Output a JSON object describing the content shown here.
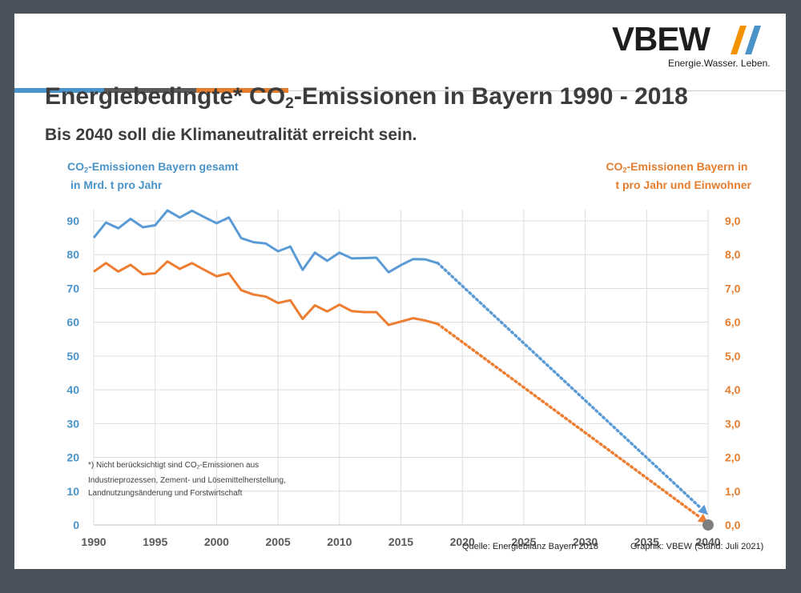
{
  "header": {
    "logo_text": "VBEW",
    "tagline": "Energie.Wasser. Leben.",
    "bar_colors": [
      "#4a93c8",
      "#595959",
      "#e47d2e"
    ]
  },
  "title": {
    "pre": "Energiebedingte* CO",
    "sub": "2",
    "post": "-Emissionen in Bayern 1990 - 2018"
  },
  "subtitle": "Bis 2040 soll die Klimaneutralität erreicht sein.",
  "left_axis_title": {
    "pre": "CO",
    "sub": "2",
    "post": "-Emissionen Bayern gesamt",
    "line2": "in Mrd. t pro Jahr"
  },
  "right_axis_title": {
    "pre": "CO",
    "sub": "2",
    "post": "-Emissionen Bayern in",
    "line2": "t pro Jahr und Einwohner"
  },
  "footnote": {
    "pre": "*) Nicht berücksichtigt sind CO",
    "sub": "2",
    "post": "-Emissionen aus",
    "line2": "Industrieprozessen, Zement- und Lösemittelherstellung,",
    "line3": "Landnutzungsänderung und Forstwirtschaft"
  },
  "source": "Quelle: Energiebilanz Bayern 2018",
  "credit": "Graphik: VBEW (Stand: Juli 2021)",
  "chart_data": {
    "type": "line",
    "x_ticks": [
      1990,
      1995,
      2000,
      2005,
      2010,
      2015,
      2020,
      2025,
      2030,
      2035,
      2040
    ],
    "y_left_ticks": [
      "0",
      "10",
      "20",
      "30",
      "40",
      "50",
      "60",
      "70",
      "80",
      "90"
    ],
    "y_right_ticks": [
      "0,0",
      "1,0",
      "2,0",
      "3,0",
      "4,0",
      "5,0",
      "6,0",
      "7,0",
      "8,0",
      "9,0"
    ],
    "xlim": [
      1990,
      2040
    ],
    "ylim_left": [
      0,
      90
    ],
    "ylim_right": [
      0,
      9
    ],
    "grid": true,
    "series": [
      {
        "axis": "left",
        "color": "#5b9bd5",
        "x": [
          1990,
          1991,
          1992,
          1993,
          1994,
          1995,
          1996,
          1997,
          1998,
          1999,
          2000,
          2001,
          2002,
          2003,
          2004,
          2005,
          2006,
          2007,
          2008,
          2009,
          2010,
          2011,
          2012,
          2013,
          2014,
          2015,
          2016,
          2017,
          2018
        ],
        "values": [
          85,
          89.5,
          87.8,
          90.6,
          88.1,
          88.7,
          93.1,
          91,
          93,
          91.1,
          89.3,
          91,
          84.9,
          83.7,
          83.3,
          81,
          82.4,
          75.5,
          80.6,
          78.2,
          80.6,
          78.9,
          79,
          79.1,
          74.8,
          76.9,
          78.7,
          78.6,
          77.5
        ],
        "projection": {
          "x": [
            2018,
            2040
          ],
          "values": [
            77.5,
            3
          ]
        }
      },
      {
        "axis": "right",
        "color": "#ed7d31",
        "x": [
          1990,
          1991,
          1992,
          1993,
          1994,
          1995,
          1996,
          1997,
          1998,
          1999,
          2000,
          2001,
          2002,
          2003,
          2004,
          2005,
          2006,
          2007,
          2008,
          2009,
          2010,
          2011,
          2012,
          2013,
          2014,
          2015,
          2016,
          2017,
          2018
        ],
        "values": [
          7.5,
          7.75,
          7.5,
          7.7,
          7.42,
          7.45,
          7.8,
          7.58,
          7.75,
          7.55,
          7.36,
          7.45,
          6.95,
          6.82,
          6.76,
          6.57,
          6.65,
          6.1,
          6.5,
          6.32,
          6.52,
          6.33,
          6.3,
          6.3,
          5.92,
          6.02,
          6.12,
          6.05,
          5.95
        ],
        "projection": {
          "x": [
            2018,
            2040
          ],
          "values": [
            5.95,
            0.05
          ]
        }
      }
    ],
    "endpoint": {
      "x": 2040,
      "y_left": 0,
      "color": "#7f7f7f"
    }
  }
}
